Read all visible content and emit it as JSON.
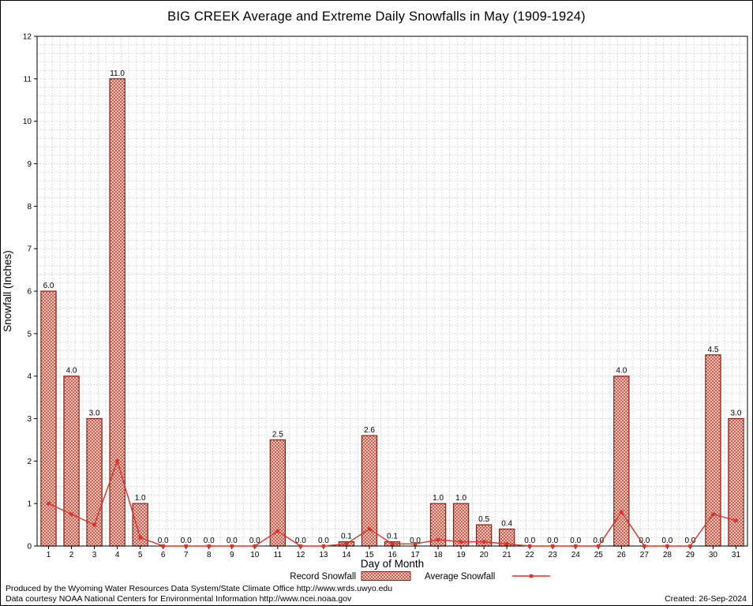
{
  "title": "BIG CREEK Average and Extreme Daily Snowfalls in May (1909-1924)",
  "chart_data": {
    "type": "bar",
    "title": "BIG CREEK Average and Extreme Daily Snowfalls in May (1909-1924)",
    "xlabel": "Day of Month",
    "ylabel": "Snowfall (Inches)",
    "ylim": [
      0,
      12
    ],
    "ytick_step": 1,
    "grid": true,
    "legend_position": "bottom",
    "categories": [
      1,
      2,
      3,
      4,
      5,
      6,
      7,
      8,
      9,
      10,
      11,
      12,
      13,
      14,
      15,
      16,
      17,
      18,
      19,
      20,
      21,
      22,
      23,
      24,
      25,
      26,
      27,
      28,
      29,
      30,
      31
    ],
    "series": [
      {
        "name": "Record Snowfall",
        "type": "bar",
        "color": "#8b1f14",
        "values": [
          6.0,
          4.0,
          3.0,
          11.0,
          1.0,
          0.0,
          0.0,
          0.0,
          0.0,
          0.0,
          2.5,
          0.0,
          0.0,
          0.1,
          2.6,
          0.1,
          0.0,
          1.0,
          1.0,
          0.5,
          0.4,
          0.0,
          0.0,
          0.0,
          0.0,
          4.0,
          0.0,
          0.0,
          0.0,
          4.5,
          3.0
        ]
      },
      {
        "name": "Average Snowfall",
        "type": "line",
        "color": "#e03028",
        "values": [
          1.0,
          0.75,
          0.5,
          2.0,
          0.2,
          0.0,
          0.0,
          0.0,
          0.0,
          0.0,
          0.35,
          0.0,
          0.0,
          0.05,
          0.4,
          0.05,
          0.05,
          0.15,
          0.1,
          0.1,
          0.05,
          0.0,
          0.0,
          0.0,
          0.0,
          0.8,
          0.0,
          0.0,
          0.0,
          0.75,
          0.6
        ]
      }
    ]
  },
  "footer": {
    "line1": "Produced by the Wyoming Water Resources Data System/State Climate Office http://www.wrds.uwyo.edu",
    "line2": "Data courtesy NOAA National Centers for Environmental Information http://www.ncei.noaa.gov",
    "created": "Created: 26-Sep-2024"
  },
  "colors": {
    "bar_outline": "#8b1f14",
    "bar_hatch": "#bf4a3a",
    "bar_fill_bg": "#f7e4dc",
    "line": "#e03028",
    "grid": "#bbbbbb",
    "axis": "#000000"
  }
}
